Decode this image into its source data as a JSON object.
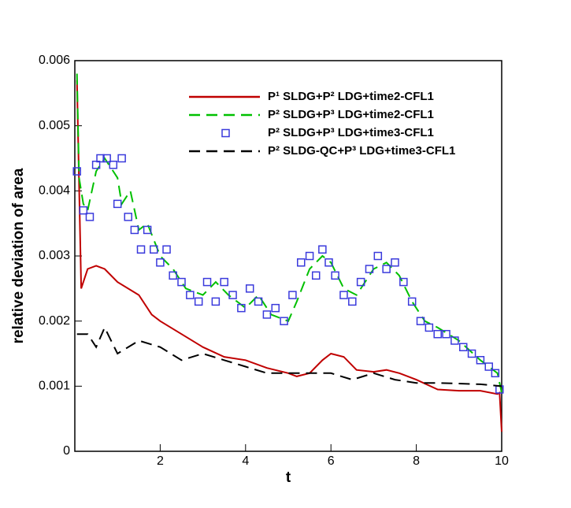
{
  "chart_data": {
    "type": "line",
    "xlabel": "t",
    "ylabel": "relative deviation of area",
    "xlim": [
      0,
      10
    ],
    "ylim": [
      0,
      0.006
    ],
    "xticks": [
      2,
      4,
      6,
      8,
      10
    ],
    "yticks": [
      0,
      0.001,
      0.002,
      0.003,
      0.004,
      0.005,
      0.006
    ],
    "series": [
      {
        "name": "P¹ SLDG+P² LDG+time2-CFL1",
        "color": "#c00000",
        "style": "solid",
        "x": [
          0.05,
          0.15,
          0.3,
          0.5,
          0.7,
          1.0,
          1.5,
          1.8,
          2.0,
          2.5,
          3.0,
          3.5,
          4.0,
          4.5,
          5.0,
          5.2,
          5.5,
          5.8,
          6.0,
          6.3,
          6.6,
          7.0,
          7.3,
          7.6,
          8.0,
          8.5,
          9.0,
          9.5,
          9.9,
          9.95,
          10.0
        ],
        "values": [
          0.0057,
          0.0025,
          0.0028,
          0.00285,
          0.0028,
          0.0026,
          0.0024,
          0.0021,
          0.002,
          0.0018,
          0.0016,
          0.00145,
          0.0014,
          0.00128,
          0.0012,
          0.00115,
          0.0012,
          0.0014,
          0.0015,
          0.00145,
          0.00125,
          0.00122,
          0.00125,
          0.0012,
          0.0011,
          0.00095,
          0.00093,
          0.00093,
          0.00088,
          0.0009,
          0.0003
        ]
      },
      {
        "name": "P² SLDG+P³ LDG+time2-CFL1",
        "color": "#00c000",
        "style": "dash",
        "x": [
          0.05,
          0.1,
          0.2,
          0.3,
          0.5,
          0.7,
          0.9,
          1.0,
          1.1,
          1.3,
          1.5,
          1.7,
          2.0,
          2.3,
          2.6,
          3.0,
          3.3,
          3.6,
          4.0,
          4.3,
          4.6,
          5.0,
          5.2,
          5.5,
          5.8,
          6.0,
          6.3,
          6.6,
          7.0,
          7.3,
          7.6,
          7.9,
          8.2,
          8.5,
          9.0,
          9.5,
          9.9,
          10.0
        ],
        "values": [
          0.0058,
          0.0042,
          0.0038,
          0.0037,
          0.0043,
          0.0045,
          0.0043,
          0.0042,
          0.0038,
          0.004,
          0.0034,
          0.0035,
          0.003,
          0.0028,
          0.0025,
          0.0024,
          0.0026,
          0.0024,
          0.0022,
          0.0024,
          0.0021,
          0.002,
          0.0023,
          0.0028,
          0.003,
          0.0029,
          0.0025,
          0.0024,
          0.0028,
          0.0029,
          0.0027,
          0.0023,
          0.002,
          0.0019,
          0.0017,
          0.0014,
          0.0012,
          0.0009
        ]
      },
      {
        "name": "P² SLDG+P³ LDG+time3-CFL1",
        "color": "#3a3adc",
        "style": "square",
        "x": [
          0.05,
          0.2,
          0.35,
          0.5,
          0.6,
          0.75,
          0.9,
          1.0,
          1.1,
          1.25,
          1.4,
          1.55,
          1.7,
          1.85,
          2.0,
          2.15,
          2.3,
          2.5,
          2.7,
          2.9,
          3.1,
          3.3,
          3.5,
          3.7,
          3.9,
          4.1,
          4.3,
          4.5,
          4.7,
          4.9,
          5.1,
          5.3,
          5.5,
          5.65,
          5.8,
          5.95,
          6.1,
          6.3,
          6.5,
          6.7,
          6.9,
          7.1,
          7.3,
          7.5,
          7.7,
          7.9,
          8.1,
          8.3,
          8.5,
          8.7,
          8.9,
          9.1,
          9.3,
          9.5,
          9.7,
          9.85,
          9.95
        ],
        "values": [
          0.0043,
          0.0037,
          0.0036,
          0.0044,
          0.0045,
          0.0045,
          0.0044,
          0.0038,
          0.0045,
          0.0036,
          0.0034,
          0.0031,
          0.0034,
          0.0031,
          0.0029,
          0.0031,
          0.0027,
          0.0026,
          0.0024,
          0.0023,
          0.0026,
          0.0023,
          0.0026,
          0.0024,
          0.0022,
          0.0025,
          0.0023,
          0.0021,
          0.0022,
          0.002,
          0.0024,
          0.0029,
          0.003,
          0.0027,
          0.0031,
          0.0029,
          0.0027,
          0.0024,
          0.0023,
          0.0026,
          0.0028,
          0.003,
          0.0028,
          0.0029,
          0.0026,
          0.0023,
          0.002,
          0.0019,
          0.0018,
          0.0018,
          0.0017,
          0.0016,
          0.0015,
          0.0014,
          0.0013,
          0.0012,
          0.00095
        ]
      },
      {
        "name": "P² SLDG-QC+P³ LDG+time3-CFL1",
        "color": "#000000",
        "style": "dash",
        "x": [
          0.05,
          0.3,
          0.5,
          0.7,
          1.0,
          1.5,
          2.0,
          2.5,
          3.0,
          3.5,
          4.0,
          4.5,
          5.0,
          5.5,
          6.0,
          6.5,
          7.0,
          7.5,
          8.0,
          8.5,
          9.0,
          9.5,
          10.0
        ],
        "values": [
          0.0018,
          0.0018,
          0.0016,
          0.0019,
          0.0015,
          0.0017,
          0.0016,
          0.0014,
          0.0015,
          0.0014,
          0.0013,
          0.0012,
          0.0012,
          0.0012,
          0.0012,
          0.0011,
          0.0012,
          0.0011,
          0.00105,
          0.00105,
          0.00104,
          0.00103,
          0.001
        ]
      }
    ]
  }
}
